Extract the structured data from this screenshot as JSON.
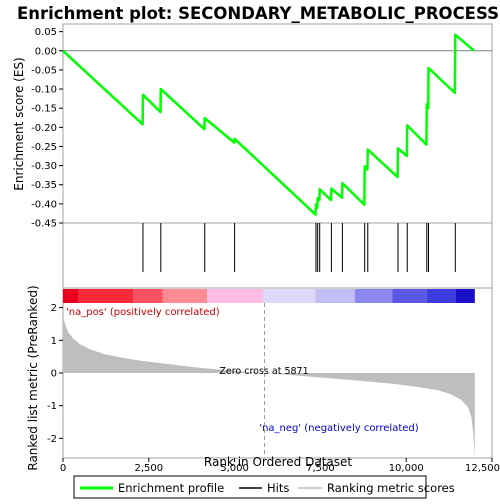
{
  "chart_data": {
    "type": "line",
    "title": "Enrichment plot: SECONDARY_METABOLIC_PROCESS",
    "xlabel": "Rank in Ordered Dataset",
    "ylabel_top": "Enrichment score (ES)",
    "ylabel_bottom": "Ranked list metric (PreRanked)",
    "xlim": [
      0,
      12500
    ],
    "x_ticks": [
      0,
      2500,
      5000,
      7500,
      10000,
      12500
    ],
    "x_tick_labels": [
      "0",
      "2,500",
      "5,000",
      "7,500",
      "10,000",
      "12,500"
    ],
    "es_ylim": [
      -0.45,
      0.07
    ],
    "es_ticks": [
      0.05,
      0.0,
      -0.05,
      -0.1,
      -0.15,
      -0.2,
      -0.25,
      -0.3,
      -0.35,
      -0.4,
      -0.45
    ],
    "es_tick_labels": [
      "0.05",
      "0.00",
      "-0.05",
      "-0.10",
      "-0.15",
      "-0.20",
      "-0.25",
      "-0.30",
      "-0.35",
      "-0.40",
      "-0.45"
    ],
    "metric_ylim": [
      -2.6,
      2.6
    ],
    "metric_ticks": [
      2,
      1,
      0,
      -1,
      -2
    ],
    "metric_tick_labels": [
      "2",
      "1",
      "0",
      "-1",
      "-2"
    ],
    "hits": [
      2330,
      2850,
      4130,
      5000,
      7370,
      7420,
      7480,
      7820,
      8140,
      8790,
      8880,
      9760,
      10030,
      10600,
      10650,
      11430
    ],
    "es_profile": {
      "name": "Enrichment profile",
      "color": "#00ff00",
      "x": [
        0,
        2320,
        2330,
        2840,
        2850,
        4120,
        4130,
        4990,
        5000,
        7360,
        7370,
        7410,
        7420,
        7470,
        7480,
        7810,
        7820,
        8130,
        8140,
        8780,
        8790,
        8870,
        8880,
        9750,
        9760,
        10020,
        10030,
        10590,
        10600,
        10640,
        10650,
        11420,
        11430,
        11980
      ],
      "y": [
        0.0,
        -0.192,
        -0.115,
        -0.16,
        -0.1,
        -0.205,
        -0.176,
        -0.24,
        -0.23,
        -0.428,
        -0.402,
        -0.41,
        -0.385,
        -0.39,
        -0.362,
        -0.39,
        -0.36,
        -0.384,
        -0.346,
        -0.402,
        -0.302,
        -0.31,
        -0.258,
        -0.33,
        -0.255,
        -0.275,
        -0.195,
        -0.245,
        -0.14,
        -0.15,
        -0.045,
        -0.11,
        0.042,
        0.0
      ]
    },
    "metric_curve": {
      "name": "Ranking metric scores",
      "color": "#bebebe",
      "x": [
        0,
        60,
        150,
        300,
        500,
        800,
        1200,
        1700,
        2300,
        3000,
        3800,
        4600,
        5300,
        5871,
        6500,
        7200,
        8000,
        8800,
        9600,
        10300,
        10900,
        11300,
        11600,
        11800,
        11900,
        11960,
        12000
      ],
      "y": [
        1.75,
        1.5,
        1.25,
        1.05,
        0.88,
        0.72,
        0.58,
        0.47,
        0.37,
        0.28,
        0.18,
        0.1,
        0.04,
        0.0,
        -0.05,
        -0.11,
        -0.18,
        -0.25,
        -0.33,
        -0.42,
        -0.52,
        -0.65,
        -0.82,
        -1.05,
        -1.35,
        -1.9,
        -2.6
      ]
    },
    "zero_cross_rank": 5871,
    "zero_cross_label": "Zero cross at 5871",
    "na_pos_label": "'na_pos' (positively correlated)",
    "na_neg_label": "'na_neg' (negatively correlated)",
    "colors": {
      "na_pos": "#ff0000",
      "na_neg": "#0000ff",
      "hits": "#000000"
    },
    "colorbar": [
      {
        "from": 0,
        "to": 450,
        "color": "#e8001c"
      },
      {
        "from": 450,
        "to": 2050,
        "color": "#f62a3a"
      },
      {
        "from": 2050,
        "to": 2900,
        "color": "#fe5263"
      },
      {
        "from": 2900,
        "to": 4200,
        "color": "#ff8c95"
      },
      {
        "from": 4200,
        "to": 5850,
        "color": "#ffbfe4"
      },
      {
        "from": 5850,
        "to": 7350,
        "color": "#dcd9fb"
      },
      {
        "from": 7350,
        "to": 8500,
        "color": "#c2bef5"
      },
      {
        "from": 8500,
        "to": 9600,
        "color": "#8b88ee"
      },
      {
        "from": 9600,
        "to": 10600,
        "color": "#5b58e5"
      },
      {
        "from": 10600,
        "to": 11450,
        "color": "#3e3cdc"
      },
      {
        "from": 11450,
        "to": 12000,
        "color": "#1c0fc8"
      }
    ]
  },
  "legend": {
    "items": [
      {
        "label": "Enrichment profile",
        "color": "#00ff00"
      },
      {
        "label": "Hits",
        "color": "#000000"
      },
      {
        "label": "Ranking metric scores",
        "color": "#bebebe"
      }
    ]
  }
}
